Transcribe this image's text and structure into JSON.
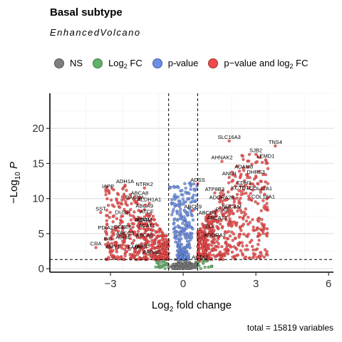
{
  "header": {
    "title": "Basal subtype",
    "subtitle": "EnhancedVolcano"
  },
  "legend": {
    "items": [
      {
        "key": "ns",
        "label": "NS",
        "label_sub": "",
        "label_after": "",
        "color": "#7f7f7f"
      },
      {
        "key": "log2fc",
        "label": "Log",
        "label_sub": "2",
        "label_after": " FC",
        "color": "#61b26a"
      },
      {
        "key": "pvalue",
        "label": "p-value",
        "label_sub": "",
        "label_after": "",
        "color": "#6c8fe6"
      },
      {
        "key": "both",
        "label": "p−value and log",
        "label_sub": "2",
        "label_after": " FC",
        "color": "#f04b4b"
      }
    ]
  },
  "caption": "total = 15819 variables",
  "chart_data": {
    "type": "scatter",
    "title": "Basal subtype",
    "subtitle": "EnhancedVolcano",
    "xlabel": "Log2 fold change",
    "ylabel": "−Log10 P",
    "xlim": [
      -5.5,
      6.2
    ],
    "ylim": [
      -0.5,
      25
    ],
    "x_ticks": [
      -3,
      0,
      3,
      6
    ],
    "y_ticks": [
      0,
      5,
      10,
      15,
      20
    ],
    "grid": true,
    "legend_position": "top",
    "thresholds": {
      "log2fc": 0.6,
      "neg_log10_p": 1.3
    },
    "colors": {
      "ns": "#7f7f7f",
      "log2fc": "#61b26a",
      "pvalue": "#6c8fe6",
      "both": "#f04b4b"
    },
    "labeled_genes": [
      {
        "name": "TNS4",
        "x": 3.8,
        "y": 17.5
      },
      {
        "name": "SLC16A3",
        "x": 1.9,
        "y": 18.2
      },
      {
        "name": "SJB2",
        "x": 3.0,
        "y": 16.3
      },
      {
        "name": "LEMD1",
        "x": 3.4,
        "y": 15.5
      },
      {
        "name": "AHNAK2",
        "x": 1.6,
        "y": 15.3
      },
      {
        "name": "ADAM8",
        "x": 2.5,
        "y": 14.0
      },
      {
        "name": "DHRS3",
        "x": 3.0,
        "y": 13.2
      },
      {
        "name": "ANLN",
        "x": 1.9,
        "y": 13.0
      },
      {
        "name": "ADSS",
        "x": 0.6,
        "y": 12.1
      },
      {
        "name": "CDH3",
        "x": 2.5,
        "y": 11.7
      },
      {
        "name": "ATP8B3",
        "x": 1.3,
        "y": 10.8
      },
      {
        "name": "KCTD11",
        "x": 2.4,
        "y": 11.0
      },
      {
        "name": "COL11A1",
        "x": 3.2,
        "y": 10.9
      },
      {
        "name": "ADORA2B",
        "x": 1.6,
        "y": 9.6
      },
      {
        "name": "COL10A1",
        "x": 3.3,
        "y": 9.7
      },
      {
        "name": "ABCB9",
        "x": 0.4,
        "y": 8.3
      },
      {
        "name": "ABCB3",
        "x": 1.0,
        "y": 7.4
      },
      {
        "name": "NRCAM",
        "x": 2.0,
        "y": 8.3
      },
      {
        "name": "PLX3",
        "x": 1.6,
        "y": 7.9
      },
      {
        "name": "TLX",
        "x": 1.1,
        "y": 5.5
      },
      {
        "name": "ABCA12",
        "x": 1.4,
        "y": 6.7
      },
      {
        "name": "ADORA3",
        "x": 1.3,
        "y": 4.2
      },
      {
        "name": "ACTA2",
        "x": 0.7,
        "y": 1.1
      },
      {
        "name": "ADH1A",
        "x": -2.4,
        "y": 11.9
      },
      {
        "name": "IAPP",
        "x": -3.1,
        "y": 11.2
      },
      {
        "name": "NTRK2",
        "x": -1.6,
        "y": 11.5
      },
      {
        "name": "ABCA8",
        "x": -1.8,
        "y": 10.2
      },
      {
        "name": "CACNA",
        "x": -2.0,
        "y": 9.6
      },
      {
        "name": "ALDH1A1",
        "x": -1.4,
        "y": 9.3
      },
      {
        "name": "ABCA9",
        "x": -1.6,
        "y": 8.4
      },
      {
        "name": "ATCF",
        "x": -1.5,
        "y": 7.6
      },
      {
        "name": "SST",
        "x": -3.4,
        "y": 8.0
      },
      {
        "name": "DUSP",
        "x": -2.5,
        "y": 7.5
      },
      {
        "name": "ADRB",
        "x": -1.7,
        "y": 6.4
      },
      {
        "name": "ADAM",
        "x": -1.6,
        "y": 6.4
      },
      {
        "name": "ACAT1",
        "x": -1.5,
        "y": 5.6
      },
      {
        "name": "PDIA2",
        "x": -3.2,
        "y": 5.3
      },
      {
        "name": "GCBE5",
        "x": -2.5,
        "y": 5.4
      },
      {
        "name": "ABCC3",
        "x": -2.4,
        "y": 4.5
      },
      {
        "name": "ABCA6",
        "x": -1.6,
        "y": 4.2
      },
      {
        "name": "INS",
        "x": -3.1,
        "y": 3.7
      },
      {
        "name": "ADH4",
        "x": -2.5,
        "y": 3.9
      },
      {
        "name": "CRA",
        "x": -3.6,
        "y": 3.0
      },
      {
        "name": "AMY1",
        "x": -2.9,
        "y": 2.6
      },
      {
        "name": "ADHE",
        "x": -1.7,
        "y": 2.7
      },
      {
        "name": "FAM5",
        "x": -2.0,
        "y": 2.5
      },
      {
        "name": "AADAC",
        "x": -1.3,
        "y": 1.8
      }
    ]
  }
}
